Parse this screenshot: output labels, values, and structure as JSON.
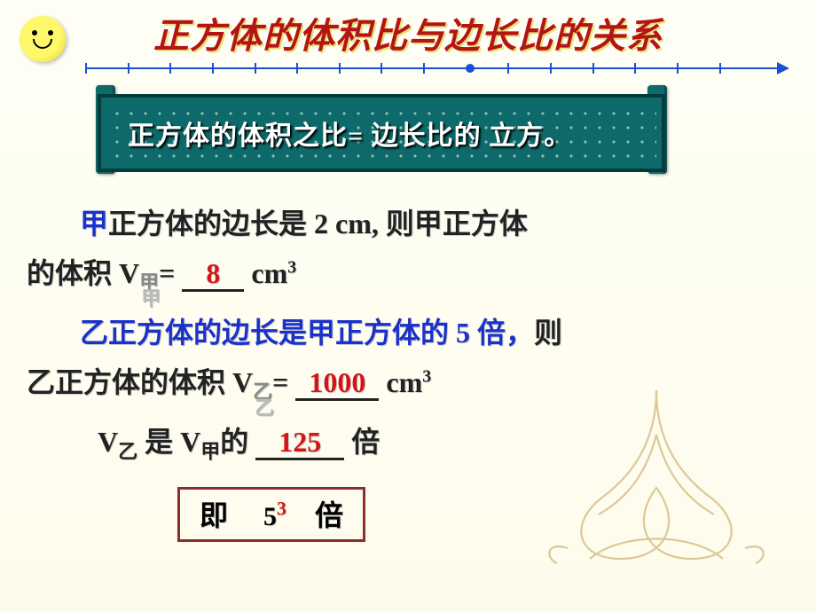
{
  "title": "正方体的体积比与边长比的关系",
  "banner": "正方体的体积之比=  边长比的 立方。",
  "p1": {
    "pre_colored": "甲",
    "t1": "正方体的边长是 2 cm, 则甲正方体",
    "line2_a": "的体积 V",
    "sub1": "甲",
    "eq": "= ",
    "ans1": "8",
    "unit1a": " cm",
    "unit1_exp": "3"
  },
  "p2": {
    "pre_colored": "乙正方体的边长是甲正方体的 5 倍，",
    "t1": "则",
    "line2_a": "乙正方体的体积  V",
    "sub2": "乙",
    "eq": "= ",
    "ans2": "1000",
    "unit2a": " cm",
    "unit2_exp": "3"
  },
  "p3": {
    "a": "V",
    "sub_y": "乙",
    "mid": " 是 V",
    "sub_j": "甲",
    "after": "的 ",
    "ans3": "125",
    "tail": " 倍"
  },
  "final": {
    "pre": "即",
    "gap": "     ",
    "base": "5",
    "exp": "3",
    "tail": "    倍"
  },
  "style": {
    "title_color": "#b51415",
    "banner_bg": "#0e6a6a",
    "answer_color": "#d31515",
    "highlight_blue": "#1a32c9"
  },
  "numberline": {
    "ticks_pct": [
      0,
      6,
      12,
      18,
      24,
      30,
      36,
      42,
      48,
      60,
      66,
      72,
      78,
      84,
      90
    ],
    "dot_pct": 54
  }
}
